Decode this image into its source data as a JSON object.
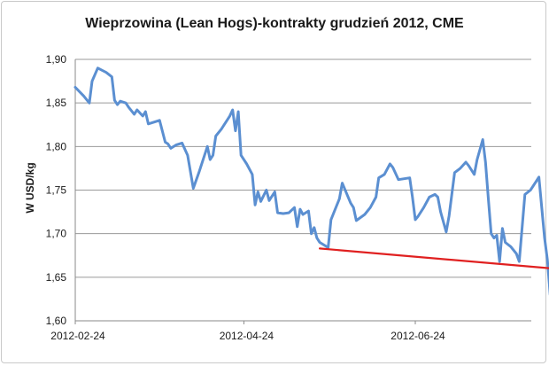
{
  "chart_data": {
    "type": "line",
    "title": "Wieprzowina (Lean Hogs)-kontrakty grudzień 2012, CME",
    "xlabel": "",
    "ylabel": "W USD/kg",
    "ylim": [
      1.6,
      1.9
    ],
    "yticks": [
      "1,60",
      "1,65",
      "1,70",
      "1,75",
      "1,80",
      "1,85",
      "1,90"
    ],
    "xticks": [
      "2012-02-24",
      "2012-04-24",
      "2012-06-24"
    ],
    "grid": true,
    "series": [
      {
        "color": "#5b8fd1",
        "points": [
          [
            "2012-02-24",
            1.868
          ],
          [
            "2012-02-27",
            1.858
          ],
          [
            "2012-02-29",
            1.85
          ],
          [
            "2012-03-01",
            1.875
          ],
          [
            "2012-03-03",
            1.89
          ],
          [
            "2012-03-06",
            1.885
          ],
          [
            "2012-03-08",
            1.88
          ],
          [
            "2012-03-09",
            1.853
          ],
          [
            "2012-03-10",
            1.848
          ],
          [
            "2012-03-11",
            1.852
          ],
          [
            "2012-03-13",
            1.85
          ],
          [
            "2012-03-14",
            1.845
          ],
          [
            "2012-03-16",
            1.837
          ],
          [
            "2012-03-17",
            1.842
          ],
          [
            "2012-03-19",
            1.835
          ],
          [
            "2012-03-20",
            1.84
          ],
          [
            "2012-03-21",
            1.826
          ],
          [
            "2012-03-23",
            1.828
          ],
          [
            "2012-03-25",
            1.83
          ],
          [
            "2012-03-27",
            1.805
          ],
          [
            "2012-03-28",
            1.803
          ],
          [
            "2012-03-29",
            1.798
          ],
          [
            "2012-03-31",
            1.802
          ],
          [
            "2012-04-02",
            1.804
          ],
          [
            "2012-04-04",
            1.79
          ],
          [
            "2012-04-06",
            1.752
          ],
          [
            "2012-04-08",
            1.77
          ],
          [
            "2012-04-11",
            1.8
          ],
          [
            "2012-04-12",
            1.785
          ],
          [
            "2012-04-13",
            1.79
          ],
          [
            "2012-04-14",
            1.812
          ],
          [
            "2012-04-16",
            1.82
          ],
          [
            "2012-04-19",
            1.835
          ],
          [
            "2012-04-20",
            1.842
          ],
          [
            "2012-04-21",
            1.818
          ],
          [
            "2012-04-22",
            1.84
          ],
          [
            "2012-04-23",
            1.79
          ],
          [
            "2012-04-25",
            1.78
          ],
          [
            "2012-04-27",
            1.768
          ],
          [
            "2012-04-28",
            1.733
          ],
          [
            "2012-04-29",
            1.748
          ],
          [
            "2012-04-30",
            1.737
          ],
          [
            "2012-05-02",
            1.75
          ],
          [
            "2012-05-03",
            1.738
          ],
          [
            "2012-05-05",
            1.748
          ],
          [
            "2012-05-06",
            1.724
          ],
          [
            "2012-05-08",
            1.723
          ],
          [
            "2012-05-10",
            1.724
          ],
          [
            "2012-05-12",
            1.73
          ],
          [
            "2012-05-13",
            1.708
          ],
          [
            "2012-05-14",
            1.728
          ],
          [
            "2012-05-15",
            1.722
          ],
          [
            "2012-05-17",
            1.726
          ],
          [
            "2012-05-18",
            1.7
          ],
          [
            "2012-05-19",
            1.707
          ],
          [
            "2012-05-20",
            1.695
          ],
          [
            "2012-05-21",
            1.69
          ],
          [
            "2012-05-23",
            1.686
          ],
          [
            "2012-05-24",
            1.684
          ],
          [
            "2012-05-25",
            1.716
          ],
          [
            "2012-05-28",
            1.74
          ],
          [
            "2012-05-29",
            1.758
          ],
          [
            "2012-06-01",
            1.735
          ],
          [
            "2012-06-02",
            1.73
          ],
          [
            "2012-06-03",
            1.715
          ],
          [
            "2012-06-06",
            1.722
          ],
          [
            "2012-06-08",
            1.73
          ],
          [
            "2012-06-10",
            1.742
          ],
          [
            "2012-06-11",
            1.764
          ],
          [
            "2012-06-13",
            1.768
          ],
          [
            "2012-06-15",
            1.78
          ],
          [
            "2012-06-16",
            1.776
          ],
          [
            "2012-06-18",
            1.762
          ],
          [
            "2012-06-20",
            1.763
          ],
          [
            "2012-06-22",
            1.764
          ],
          [
            "2012-06-23",
            1.742
          ],
          [
            "2012-06-24",
            1.716
          ],
          [
            "2012-06-25",
            1.72
          ],
          [
            "2012-06-27",
            1.73
          ],
          [
            "2012-06-29",
            1.742
          ],
          [
            "2012-07-01",
            1.745
          ],
          [
            "2012-07-02",
            1.742
          ],
          [
            "2012-07-03",
            1.725
          ],
          [
            "2012-07-05",
            1.702
          ],
          [
            "2012-07-06",
            1.72
          ],
          [
            "2012-07-08",
            1.77
          ],
          [
            "2012-07-10",
            1.775
          ],
          [
            "2012-07-12",
            1.782
          ],
          [
            "2012-07-13",
            1.778
          ],
          [
            "2012-07-15",
            1.768
          ],
          [
            "2012-07-16",
            1.785
          ],
          [
            "2012-07-18",
            1.808
          ],
          [
            "2012-07-19",
            1.782
          ],
          [
            "2012-07-20",
            1.74
          ],
          [
            "2012-07-21",
            1.7
          ],
          [
            "2012-07-22",
            1.695
          ],
          [
            "2012-07-23",
            1.698
          ],
          [
            "2012-07-24",
            1.668
          ],
          [
            "2012-07-25",
            1.706
          ],
          [
            "2012-07-26",
            1.69
          ],
          [
            "2012-07-28",
            1.685
          ],
          [
            "2012-07-30",
            1.677
          ],
          [
            "2012-07-31",
            1.668
          ],
          [
            "2012-08-02",
            1.745
          ],
          [
            "2012-08-04",
            1.75
          ],
          [
            "2012-08-06",
            1.76
          ],
          [
            "2012-08-07",
            1.765
          ],
          [
            "2012-08-09",
            1.695
          ],
          [
            "2012-08-10",
            1.67
          ],
          [
            "2012-08-11",
            1.63
          ]
        ]
      },
      {
        "color": "#e02020",
        "points": [
          [
            "2012-05-21",
            1.683
          ],
          [
            "2012-08-12",
            1.66
          ]
        ]
      }
    ]
  }
}
